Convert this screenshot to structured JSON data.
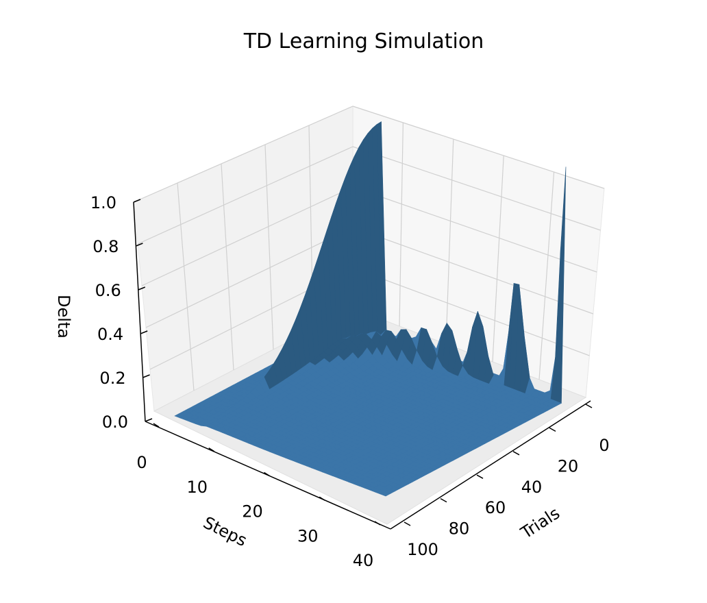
{
  "chart_data": {
    "type": "surface3d",
    "title": "TD Learning Simulation",
    "xlabel": "Trials",
    "ylabel": "Steps",
    "zlabel": "Delta",
    "x_ticks": [
      "0",
      "20",
      "40",
      "60",
      "80",
      "100"
    ],
    "y_ticks": [
      "0",
      "10",
      "20",
      "30",
      "40"
    ],
    "z_ticks": [
      "0.0",
      "0.2",
      "0.4",
      "0.6",
      "0.8",
      "1.0"
    ],
    "xlim": [
      0,
      100
    ],
    "ylim": [
      0,
      40
    ],
    "zlim": [
      0,
      1.0
    ],
    "grid": true,
    "surface_color": "#3b75a8",
    "surface_color_dark": "#2b5a80",
    "pane_color": "#f2f2f2",
    "description_of_data": [
      {
        "trial_range": [
          0,
          100
        ],
        "step": 5,
        "delta": [
          1.0,
          0.98,
          0.9,
          0.72,
          0.47,
          0.2,
          0.05,
          0.0,
          0.0,
          0.0,
          0.0
        ]
      },
      {
        "trial": 0,
        "step_range": [
          5,
          40
        ],
        "delta_peak_at_step": 40,
        "delta_peak": 0.92
      }
    ]
  }
}
